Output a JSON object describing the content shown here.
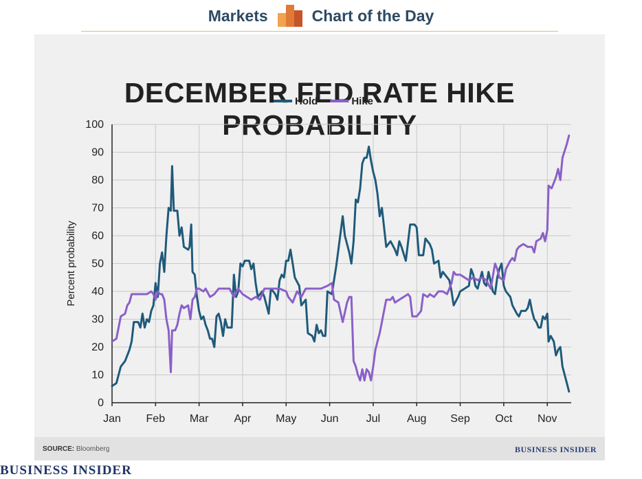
{
  "header": {
    "left_label": "Markets",
    "right_label": "Chart of the Day",
    "logo_icon": "bar-chart-logo-icon",
    "accent_colors": [
      "#f3a251",
      "#e07a36",
      "#c7552a"
    ]
  },
  "footer": {
    "source_label": "SOURCE:",
    "source_value": "Bloomberg",
    "brand_small": "BUSINESS INSIDER",
    "brand_large": "BUSINESS INSIDER"
  },
  "chart_data": {
    "type": "line",
    "title": "DECEMBER FED RATE HIKE PROBABILITY",
    "xlabel": "",
    "ylabel": "Percent probability",
    "xlim": [
      0,
      10.55
    ],
    "ylim": [
      0,
      100
    ],
    "yticks": [
      0,
      10,
      20,
      30,
      40,
      50,
      60,
      70,
      80,
      90,
      100
    ],
    "xticks": [
      "Jan",
      "Feb",
      "Mar",
      "Apr",
      "May",
      "Jun",
      "Jul",
      "Aug",
      "Sep",
      "Oct",
      "Nov"
    ],
    "grid": true,
    "legend_position": "top-center",
    "series": [
      {
        "name": "Hold",
        "color": "#1f5a7a",
        "points": [
          [
            0,
            6
          ],
          [
            0.1,
            7
          ],
          [
            0.2,
            13
          ],
          [
            0.3,
            15
          ],
          [
            0.4,
            19
          ],
          [
            0.45,
            22
          ],
          [
            0.5,
            29
          ],
          [
            0.6,
            29
          ],
          [
            0.65,
            27
          ],
          [
            0.7,
            32
          ],
          [
            0.75,
            27
          ],
          [
            0.8,
            30
          ],
          [
            0.85,
            29
          ],
          [
            0.9,
            33
          ],
          [
            0.95,
            35
          ],
          [
            1.0,
            43
          ],
          [
            1.05,
            38
          ],
          [
            1.1,
            50
          ],
          [
            1.15,
            54
          ],
          [
            1.2,
            47
          ],
          [
            1.25,
            60
          ],
          [
            1.3,
            70
          ],
          [
            1.35,
            69
          ],
          [
            1.38,
            85
          ],
          [
            1.42,
            69
          ],
          [
            1.5,
            69
          ],
          [
            1.55,
            60
          ],
          [
            1.6,
            63
          ],
          [
            1.65,
            56
          ],
          [
            1.75,
            55
          ],
          [
            1.78,
            56
          ],
          [
            1.82,
            64
          ],
          [
            1.85,
            47
          ],
          [
            1.9,
            46
          ],
          [
            1.95,
            38
          ],
          [
            2.0,
            33
          ],
          [
            2.05,
            30
          ],
          [
            2.1,
            31
          ],
          [
            2.15,
            28
          ],
          [
            2.2,
            26
          ],
          [
            2.25,
            23
          ],
          [
            2.3,
            23
          ],
          [
            2.35,
            20
          ],
          [
            2.4,
            31
          ],
          [
            2.45,
            32
          ],
          [
            2.5,
            29
          ],
          [
            2.55,
            24
          ],
          [
            2.6,
            30
          ],
          [
            2.65,
            27
          ],
          [
            2.75,
            27
          ],
          [
            2.8,
            46
          ],
          [
            2.85,
            38
          ],
          [
            2.9,
            40
          ],
          [
            2.95,
            50
          ],
          [
            3.0,
            49
          ],
          [
            3.05,
            51
          ],
          [
            3.15,
            51
          ],
          [
            3.2,
            48
          ],
          [
            3.25,
            50
          ],
          [
            3.3,
            43
          ],
          [
            3.35,
            38
          ],
          [
            3.45,
            40
          ],
          [
            3.5,
            38
          ],
          [
            3.55,
            35
          ],
          [
            3.6,
            32
          ],
          [
            3.65,
            41
          ],
          [
            3.7,
            40
          ],
          [
            3.75,
            39
          ],
          [
            3.8,
            37
          ],
          [
            3.85,
            44
          ],
          [
            3.9,
            46
          ],
          [
            3.95,
            45
          ],
          [
            4.0,
            51
          ],
          [
            4.05,
            51
          ],
          [
            4.1,
            55
          ],
          [
            4.15,
            50
          ],
          [
            4.2,
            45
          ],
          [
            4.3,
            42
          ],
          [
            4.35,
            35
          ],
          [
            4.45,
            37
          ],
          [
            4.5,
            25
          ],
          [
            4.6,
            24
          ],
          [
            4.65,
            22
          ],
          [
            4.7,
            28
          ],
          [
            4.75,
            25
          ],
          [
            4.8,
            26
          ],
          [
            4.85,
            24
          ],
          [
            4.9,
            24
          ],
          [
            4.95,
            40
          ],
          [
            5.05,
            39
          ],
          [
            5.1,
            44
          ],
          [
            5.15,
            49
          ],
          [
            5.2,
            55
          ],
          [
            5.3,
            67
          ],
          [
            5.35,
            60
          ],
          [
            5.4,
            57
          ],
          [
            5.45,
            54
          ],
          [
            5.5,
            50
          ],
          [
            5.55,
            58
          ],
          [
            5.6,
            73
          ],
          [
            5.65,
            72
          ],
          [
            5.7,
            77
          ],
          [
            5.75,
            86
          ],
          [
            5.8,
            88
          ],
          [
            5.85,
            88
          ],
          [
            5.9,
            92
          ],
          [
            5.95,
            87
          ],
          [
            6.0,
            83
          ],
          [
            6.05,
            80
          ],
          [
            6.1,
            75
          ],
          [
            6.15,
            67
          ],
          [
            6.2,
            70
          ],
          [
            6.3,
            56
          ],
          [
            6.35,
            57
          ],
          [
            6.4,
            58
          ],
          [
            6.5,
            55
          ],
          [
            6.55,
            53
          ],
          [
            6.6,
            58
          ],
          [
            6.65,
            56
          ],
          [
            6.75,
            51
          ],
          [
            6.85,
            64
          ],
          [
            6.95,
            64
          ],
          [
            7.0,
            63
          ],
          [
            7.05,
            53
          ],
          [
            7.15,
            53
          ],
          [
            7.2,
            59
          ],
          [
            7.3,
            57
          ],
          [
            7.35,
            55
          ],
          [
            7.4,
            50
          ],
          [
            7.5,
            51
          ],
          [
            7.55,
            45
          ],
          [
            7.6,
            47
          ],
          [
            7.65,
            46
          ],
          [
            7.75,
            44
          ],
          [
            7.8,
            40
          ],
          [
            7.85,
            35
          ],
          [
            7.95,
            38
          ],
          [
            8.0,
            40
          ],
          [
            8.1,
            41
          ],
          [
            8.2,
            42
          ],
          [
            8.25,
            48
          ],
          [
            8.3,
            46
          ],
          [
            8.35,
            42
          ],
          [
            8.4,
            41
          ],
          [
            8.5,
            47
          ],
          [
            8.55,
            43
          ],
          [
            8.6,
            42
          ],
          [
            8.65,
            47
          ],
          [
            8.75,
            40
          ],
          [
            8.8,
            39
          ],
          [
            8.85,
            45
          ],
          [
            8.9,
            48
          ],
          [
            8.95,
            50
          ],
          [
            9.0,
            42
          ],
          [
            9.05,
            40
          ],
          [
            9.15,
            38
          ],
          [
            9.2,
            35
          ],
          [
            9.3,
            32
          ],
          [
            9.35,
            31
          ],
          [
            9.4,
            33
          ],
          [
            9.5,
            33
          ],
          [
            9.55,
            34
          ],
          [
            9.6,
            37
          ],
          [
            9.65,
            33
          ],
          [
            9.7,
            30
          ],
          [
            9.75,
            29
          ],
          [
            9.8,
            27
          ],
          [
            9.85,
            27
          ],
          [
            9.9,
            31
          ],
          [
            9.95,
            30
          ],
          [
            10.0,
            32
          ],
          [
            10.03,
            22
          ],
          [
            10.08,
            24
          ],
          [
            10.15,
            22
          ],
          [
            10.2,
            17
          ],
          [
            10.25,
            19
          ],
          [
            10.3,
            20
          ],
          [
            10.35,
            13
          ],
          [
            10.45,
            7
          ],
          [
            10.5,
            4
          ]
        ]
      },
      {
        "name": "Hike",
        "color": "#8b5fc9",
        "points": [
          [
            0,
            22
          ],
          [
            0.1,
            23
          ],
          [
            0.2,
            31
          ],
          [
            0.3,
            32
          ],
          [
            0.35,
            35
          ],
          [
            0.4,
            36
          ],
          [
            0.45,
            39
          ],
          [
            0.55,
            39
          ],
          [
            0.7,
            39
          ],
          [
            0.8,
            39
          ],
          [
            0.9,
            40
          ],
          [
            0.95,
            39
          ],
          [
            1.0,
            37
          ],
          [
            1.05,
            40
          ],
          [
            1.1,
            39
          ],
          [
            1.15,
            39
          ],
          [
            1.2,
            37
          ],
          [
            1.25,
            30
          ],
          [
            1.3,
            26
          ],
          [
            1.35,
            11
          ],
          [
            1.38,
            26
          ],
          [
            1.45,
            26
          ],
          [
            1.5,
            28
          ],
          [
            1.55,
            32
          ],
          [
            1.6,
            35
          ],
          [
            1.65,
            34
          ],
          [
            1.75,
            35
          ],
          [
            1.8,
            30
          ],
          [
            1.85,
            37
          ],
          [
            1.9,
            38
          ],
          [
            1.95,
            41
          ],
          [
            2.0,
            41
          ],
          [
            2.1,
            40
          ],
          [
            2.15,
            41
          ],
          [
            2.25,
            38
          ],
          [
            2.35,
            39
          ],
          [
            2.45,
            41
          ],
          [
            2.55,
            41
          ],
          [
            2.7,
            41
          ],
          [
            2.8,
            38
          ],
          [
            2.9,
            41
          ],
          [
            3.0,
            39
          ],
          [
            3.1,
            38
          ],
          [
            3.2,
            37
          ],
          [
            3.3,
            38
          ],
          [
            3.4,
            37
          ],
          [
            3.5,
            41
          ],
          [
            3.6,
            41
          ],
          [
            3.7,
            41
          ],
          [
            3.85,
            41
          ],
          [
            4.0,
            40
          ],
          [
            4.05,
            38
          ],
          [
            4.15,
            36
          ],
          [
            4.25,
            40
          ],
          [
            4.35,
            38
          ],
          [
            4.45,
            41
          ],
          [
            4.6,
            41
          ],
          [
            4.8,
            41
          ],
          [
            4.95,
            42
          ],
          [
            5.05,
            43
          ],
          [
            5.1,
            37
          ],
          [
            5.2,
            36
          ],
          [
            5.3,
            29
          ],
          [
            5.4,
            36
          ],
          [
            5.45,
            38
          ],
          [
            5.5,
            38
          ],
          [
            5.55,
            15
          ],
          [
            5.6,
            13
          ],
          [
            5.65,
            10
          ],
          [
            5.7,
            8
          ],
          [
            5.75,
            12
          ],
          [
            5.8,
            8
          ],
          [
            5.85,
            12
          ],
          [
            5.9,
            11
          ],
          [
            5.95,
            8
          ],
          [
            6.0,
            13
          ],
          [
            6.05,
            19
          ],
          [
            6.1,
            22
          ],
          [
            6.15,
            25
          ],
          [
            6.2,
            29
          ],
          [
            6.25,
            33
          ],
          [
            6.3,
            37
          ],
          [
            6.4,
            37
          ],
          [
            6.45,
            38
          ],
          [
            6.5,
            36
          ],
          [
            6.6,
            37
          ],
          [
            6.7,
            38
          ],
          [
            6.8,
            39
          ],
          [
            6.85,
            38
          ],
          [
            6.9,
            31
          ],
          [
            7.0,
            31
          ],
          [
            7.1,
            33
          ],
          [
            7.15,
            39
          ],
          [
            7.25,
            38
          ],
          [
            7.3,
            39
          ],
          [
            7.4,
            38
          ],
          [
            7.5,
            40
          ],
          [
            7.6,
            40
          ],
          [
            7.7,
            39
          ],
          [
            7.8,
            43
          ],
          [
            7.85,
            47
          ],
          [
            7.9,
            46
          ],
          [
            8.0,
            46
          ],
          [
            8.1,
            45
          ],
          [
            8.2,
            44
          ],
          [
            8.3,
            45
          ],
          [
            8.4,
            44
          ],
          [
            8.5,
            45
          ],
          [
            8.6,
            44
          ],
          [
            8.7,
            41
          ],
          [
            8.8,
            50
          ],
          [
            8.85,
            48
          ],
          [
            8.9,
            45
          ],
          [
            9.0,
            44
          ],
          [
            9.05,
            48
          ],
          [
            9.15,
            51
          ],
          [
            9.2,
            52
          ],
          [
            9.25,
            51
          ],
          [
            9.3,
            55
          ],
          [
            9.35,
            56
          ],
          [
            9.45,
            57
          ],
          [
            9.55,
            56
          ],
          [
            9.65,
            56
          ],
          [
            9.7,
            54
          ],
          [
            9.75,
            58
          ],
          [
            9.85,
            59
          ],
          [
            9.9,
            61
          ],
          [
            9.95,
            58
          ],
          [
            10.0,
            62
          ],
          [
            10.03,
            78
          ],
          [
            10.1,
            77
          ],
          [
            10.15,
            79
          ],
          [
            10.2,
            81
          ],
          [
            10.25,
            84
          ],
          [
            10.3,
            80
          ],
          [
            10.35,
            88
          ],
          [
            10.45,
            93
          ],
          [
            10.5,
            96
          ]
        ]
      }
    ]
  }
}
